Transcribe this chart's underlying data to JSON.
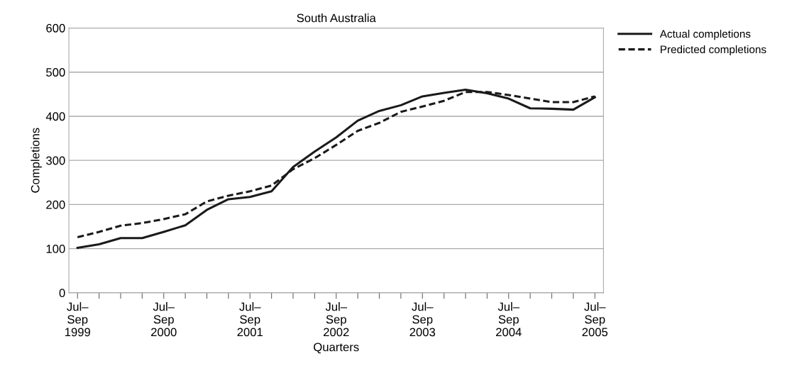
{
  "chart_data": {
    "type": "line",
    "title": "South Australia",
    "xlabel": "Quarters",
    "ylabel": "Completions",
    "categories": [
      "Jul–\nSep\n1999",
      null,
      null,
      null,
      "Jul–\nSep\n2000",
      null,
      null,
      null,
      "Jul–\nSep\n2001",
      null,
      null,
      null,
      "Jul–\nSep\n2002",
      null,
      null,
      null,
      "Jul–\nSep\n2003",
      null,
      null,
      null,
      "Jul–\nSep\n2004",
      null,
      null,
      null,
      "Jul–\nSep\n2005"
    ],
    "series": [
      {
        "name": "Actual completions",
        "color": "#1a1a1a",
        "line_style": "solid",
        "values": [
          102,
          110,
          124,
          124,
          138,
          153,
          188,
          212,
          217,
          230,
          285,
          320,
          352,
          390,
          412,
          425,
          445,
          453,
          460,
          452,
          440,
          418,
          417,
          415,
          443
        ]
      },
      {
        "name": "Predicted completions",
        "color": "#1a1a1a",
        "line_style": "dashed",
        "values": [
          126,
          138,
          152,
          158,
          167,
          178,
          207,
          220,
          230,
          243,
          280,
          305,
          335,
          367,
          385,
          410,
          422,
          435,
          455,
          455,
          448,
          440,
          432,
          432,
          445
        ]
      }
    ],
    "ylim": [
      0,
      600
    ],
    "yticks": [
      0,
      100,
      200,
      300,
      400,
      500,
      600
    ],
    "grid": "y",
    "legend": "top right",
    "marker": "none"
  }
}
